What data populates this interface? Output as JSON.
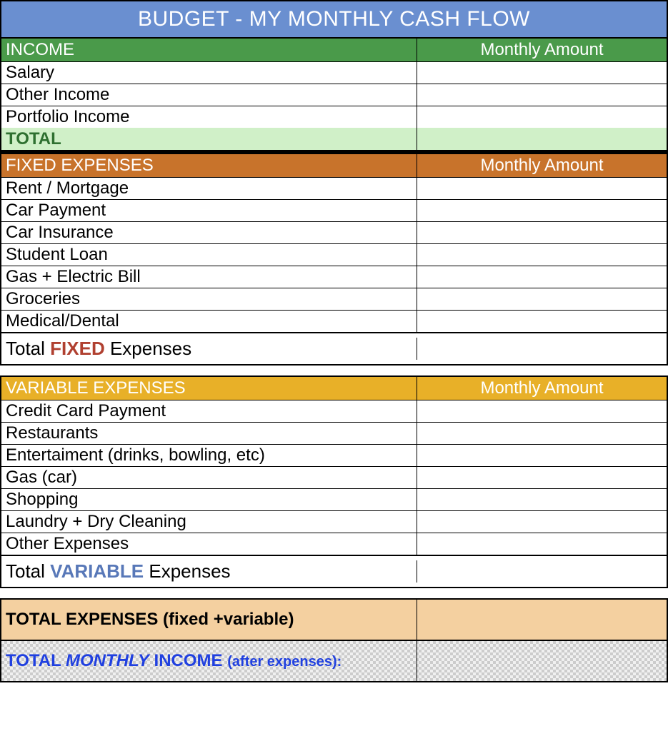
{
  "colors": {
    "title_bg": "#6a8fd0",
    "title_text": "#ffffff",
    "income_header_bg": "#4a9a4a",
    "income_header_text": "#ffffff",
    "income_total_bg": "#d0f0c8",
    "income_total_text": "#2e7030",
    "fixed_header_bg": "#c8732b",
    "fixed_header_text": "#ffffff",
    "fixed_accent": "#b04030",
    "variable_header_bg": "#e8b028",
    "variable_header_text": "#ffffff",
    "variable_accent": "#5878b8",
    "total_expenses_bg": "#f4d0a0",
    "final_text": "#2040e0",
    "border": "#000000",
    "row_text": "#000000"
  },
  "title": "BUDGET - MY MONTHLY CASH FLOW",
  "income": {
    "header_left": "INCOME",
    "header_right": "Monthly Amount",
    "rows": [
      {
        "label": "Salary",
        "value": ""
      },
      {
        "label": "Other Income",
        "value": ""
      },
      {
        "label": "Portfolio Income",
        "value": ""
      }
    ],
    "total_label": "TOTAL",
    "total_value": ""
  },
  "fixed": {
    "header_left": "FIXED EXPENSES",
    "header_right": "Monthly Amount",
    "rows": [
      {
        "label": "Rent / Mortgage",
        "value": ""
      },
      {
        "label": "Car Payment",
        "value": ""
      },
      {
        "label": "Car Insurance",
        "value": ""
      },
      {
        "label": "Student Loan",
        "value": ""
      },
      {
        "label": "Gas + Electric Bill",
        "value": ""
      },
      {
        "label": "Groceries",
        "value": ""
      },
      {
        "label": "Medical/Dental",
        "value": ""
      }
    ],
    "subtotal_prefix": "Total ",
    "subtotal_accent": "FIXED",
    "subtotal_suffix": " Expenses",
    "subtotal_value": ""
  },
  "variable": {
    "header_left": "VARIABLE EXPENSES",
    "header_right": "Monthly Amount",
    "rows": [
      {
        "label": "Credit Card Payment",
        "value": ""
      },
      {
        "label": "Restaurants",
        "value": ""
      },
      {
        "label": "Entertaiment (drinks, bowling, etc)",
        "value": ""
      },
      {
        "label": "Gas (car)",
        "value": ""
      },
      {
        "label": "Shopping",
        "value": ""
      },
      {
        "label": "Laundry + Dry Cleaning",
        "value": ""
      },
      {
        "label": "Other Expenses",
        "value": ""
      }
    ],
    "subtotal_prefix": "Total ",
    "subtotal_accent": "VARIABLE",
    "subtotal_suffix": " Expenses",
    "subtotal_value": ""
  },
  "summary": {
    "total_expenses_label": "TOTAL EXPENSES (fixed +variable)",
    "total_expenses_value": "",
    "final_prefix": "TOTAL ",
    "final_accent": "MONTHLY",
    "final_mid": " INCOME ",
    "final_suffix": "(after expenses):",
    "final_value": ""
  }
}
